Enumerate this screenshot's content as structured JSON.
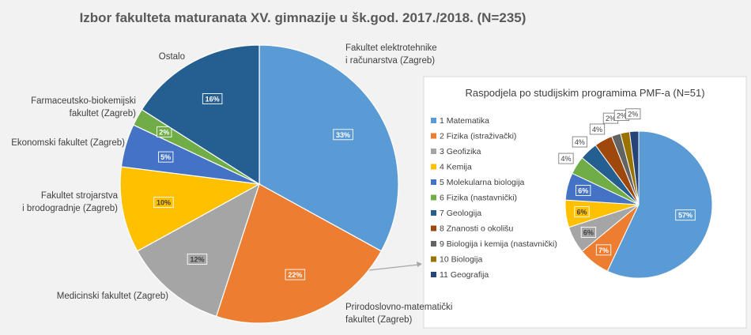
{
  "chart_data": [
    {
      "type": "pie",
      "title": "Izbor fakulteta maturanata XV. gimnazije u šk.god. 2017./2018. (N=235)",
      "slices": [
        {
          "label": [
            "Fakultet elektrotehnike",
            "i računarstva (Zagreb)"
          ],
          "value": 33,
          "value_label": "33%",
          "color": "#5b9bd5"
        },
        {
          "label": [
            "Prirodoslovno-matematički",
            "fakultet (Zagreb)"
          ],
          "value": 22,
          "value_label": "22%",
          "color": "#ed7d31"
        },
        {
          "label": [
            "Medicinski fakultet (Zagreb)"
          ],
          "value": 12,
          "value_label": "12%",
          "color": "#a5a5a5"
        },
        {
          "label": [
            "Fakultet strojarstva",
            "i brodogradnje (Zagreb)"
          ],
          "value": 10,
          "value_label": "10%",
          "color": "#ffc000"
        },
        {
          "label": [
            "Ekonomski fakultet (Zagreb)"
          ],
          "value": 5,
          "value_label": "5%",
          "color": "#4472c4"
        },
        {
          "label": [
            "Farmaceutsko-biokemijski",
            "fakultet (Zagreb)"
          ],
          "value": 2,
          "value_label": "2%",
          "color": "#70ad47"
        },
        {
          "label": [
            "Ostalo"
          ],
          "value": 16,
          "value_label": "16%",
          "color": "#255e91"
        }
      ]
    },
    {
      "type": "pie",
      "title": "Raspodjela po studijskim programima PMF-a (N=51)",
      "legend": "left",
      "slices": [
        {
          "label": "1  Matematika",
          "value": 57,
          "value_label": "57%",
          "color": "#5b9bd5"
        },
        {
          "label": "2  Fizika (istraživački)",
          "value": 7,
          "value_label": "7%",
          "color": "#ed7d31"
        },
        {
          "label": "3  Geofizika",
          "value": 6,
          "value_label": "6%",
          "color": "#a5a5a5"
        },
        {
          "label": "4  Kemija",
          "value": 6,
          "value_label": "6%",
          "color": "#ffc000"
        },
        {
          "label": "5  Molekularna biologija",
          "value": 6,
          "value_label": "6%",
          "color": "#4472c4"
        },
        {
          "label": "6  Fizika (nastavnički)",
          "value": 4,
          "value_label": "4%",
          "color": "#70ad47"
        },
        {
          "label": "7  Geologija",
          "value": 4,
          "value_label": "4%",
          "color": "#255e91"
        },
        {
          "label": "8  Znanosti o okolišu",
          "value": 4,
          "value_label": "4%",
          "color": "#9e480e"
        },
        {
          "label": "9  Biologija i kemija (nastavnički)",
          "value": 2,
          "value_label": "2%",
          "color": "#636363"
        },
        {
          "label": "10 Biologija",
          "value": 2,
          "value_label": "2%",
          "color": "#997300"
        },
        {
          "label": "11 Geografija",
          "value": 2,
          "value_label": "2%",
          "color": "#264478"
        }
      ]
    }
  ]
}
